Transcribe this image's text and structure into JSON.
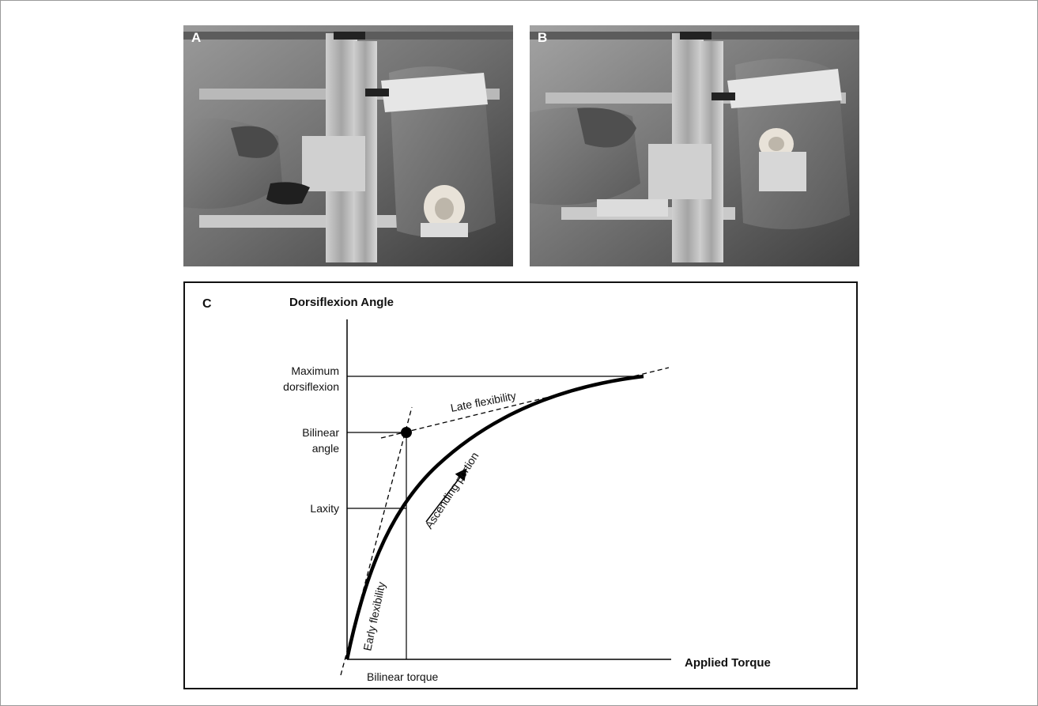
{
  "figure": {
    "panel_a_label": "A",
    "panel_b_label": "B",
    "panel_c_label": "C"
  },
  "diagram": {
    "y_axis_title": "Dorsiflexion Angle",
    "x_axis_title": "Applied Torque",
    "y_labels": {
      "max_dorsiflexion_line1": "Maximum",
      "max_dorsiflexion_line2": "dorsiflexion",
      "bilinear_angle_line1": "Bilinear",
      "bilinear_angle_line2": "angle",
      "laxity": "Laxity"
    },
    "x_labels": {
      "bilinear_torque": "Bilinear torque"
    },
    "annotations": {
      "late_flexibility": "Late flexibility",
      "early_flexibility": "Early flexibility",
      "ascending_portion": "Ascending portion"
    },
    "colors": {
      "curve": "#000000",
      "background": "#ffffff"
    }
  }
}
